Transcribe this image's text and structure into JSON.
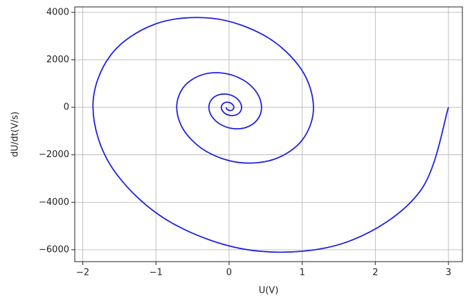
{
  "chart_data": {
    "type": "line",
    "xlabel": "U(V)",
    "ylabel": "dU/dt(V/s)",
    "x": [
      3,
      2.61,
      1.617,
      0.359,
      -0.803,
      -1.592,
      -1.861,
      -1.619,
      -1.003,
      -0.223,
      0.498,
      0.988,
      1.154,
      1.004,
      0.622,
      0.138,
      -0.309,
      -0.613,
      -0.716,
      -0.623,
      -0.386,
      -0.086,
      0.192,
      0.38,
      0.444,
      0.386,
      0.239,
      0.053,
      -0.119,
      -0.236,
      -0.276,
      -0.24,
      -0.149,
      -0.033,
      0.074,
      0.146,
      0.171,
      0.149,
      0.092,
      0.02,
      -0.046,
      -0.091,
      -0.106,
      -0.092,
      -0.057,
      -0.013,
      0.028,
      0.056,
      0.066,
      0.057,
      0.035,
      0.008,
      -0.018,
      -0.035,
      -0.041
    ],
    "series": [
      {
        "color": "#1f1fe0",
        "values": [
          0,
          -3543,
          -5667,
          -6043,
          -4834,
          -2577,
          0,
          2198,
          3516,
          3749,
          2998,
          1599,
          0,
          -1363,
          -2181,
          -2325,
          -1860,
          -992,
          0,
          846,
          1353,
          1443,
          1154,
          615,
          0,
          -524,
          -839,
          -895,
          -716,
          -382,
          0,
          326,
          521,
          555,
          444,
          237,
          0,
          -202,
          -323,
          -344,
          -276,
          -147,
          0,
          125,
          200,
          214,
          171,
          91,
          0,
          -78,
          -124,
          -132,
          -106,
          -57,
          0
        ]
      }
    ],
    "xlim": [
      -2.11,
      3.19
    ],
    "ylim": [
      -6500,
      4230
    ],
    "xticks": [
      {
        "value": -2,
        "label": "−2"
      },
      {
        "value": -1,
        "label": "−1"
      },
      0,
      1,
      2,
      3
    ],
    "yticks": [
      {
        "value": -6000,
        "label": "−6000"
      },
      {
        "value": -4000,
        "label": "−4000"
      },
      {
        "value": -2000,
        "label": "−2000"
      },
      0,
      2000,
      4000
    ],
    "grid": true
  }
}
